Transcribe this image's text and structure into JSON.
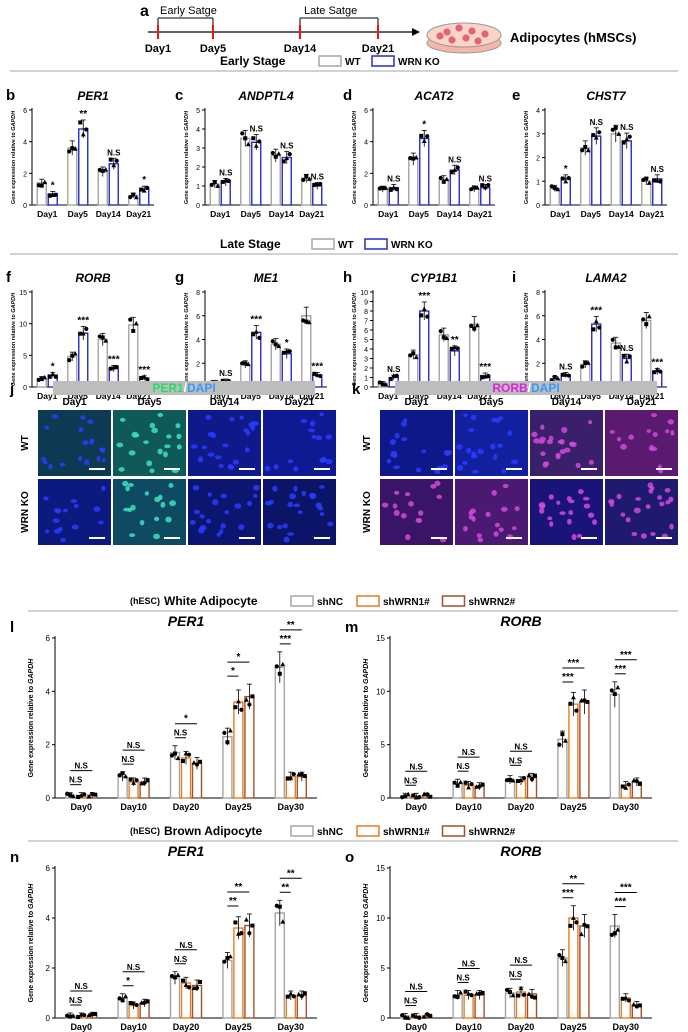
{
  "timeline": {
    "label": "a",
    "stage_labels": [
      "Early Satge",
      "Late Satge"
    ],
    "days": [
      "Day1",
      "Day5",
      "Day14",
      "Day21"
    ],
    "result": "Adipocytes (hMSCs)"
  },
  "legends": {
    "early": {
      "title": "Early Stage",
      "items": [
        "WT",
        "WRN KO"
      ]
    },
    "late": {
      "title": "Late Stage",
      "items": [
        "WT",
        "WRN KO"
      ]
    },
    "white": {
      "prefix": "(hESC)",
      "title": "White Adipocyte",
      "items": [
        "shNC",
        "shWRN1#",
        "shWRN2#"
      ]
    },
    "brown": {
      "prefix": "(hESC)",
      "title": "Brown Adipocyte",
      "items": [
        "shNC",
        "shWRN1#",
        "shWRN2#"
      ]
    }
  },
  "colors": {
    "wt_fill": "#ffffff",
    "wt_edge": "#a6a6a6",
    "ko_fill": "#ffffff",
    "ko_edge": "#2b2bc8",
    "shnc_edge": "#a6a6a6",
    "shwrn1_edge": "#e67e22",
    "shwrn2_edge": "#a0522d",
    "dot": "#000000"
  },
  "ylabel_prefix": "Gene expression relative to ",
  "ylabel_gene": "GAPDH",
  "chart_data": [
    {
      "id": "b",
      "type": "bar",
      "title": "PER1",
      "categories": [
        "Day1",
        "Day5",
        "Day14",
        "Day21"
      ],
      "ylim": [
        0,
        6
      ],
      "ticks": [
        0,
        2,
        4,
        6
      ],
      "series": [
        {
          "name": "WT",
          "values": [
            1.4,
            3.6,
            2.1,
            0.6
          ]
        },
        {
          "name": "WRN KO",
          "values": [
            0.7,
            4.8,
            2.6,
            1.0
          ]
        }
      ],
      "sig": [
        "*",
        "**",
        "N.S",
        "*"
      ]
    },
    {
      "id": "c",
      "type": "bar",
      "title": "ANDPTL4",
      "categories": [
        "Day1",
        "Day5",
        "Day14",
        "Day21"
      ],
      "ylim": [
        0,
        5
      ],
      "ticks": [
        0,
        1,
        2,
        3,
        4,
        5
      ],
      "series": [
        {
          "name": "WT",
          "values": [
            1.1,
            3.5,
            2.6,
            1.4
          ]
        },
        {
          "name": "WRN KO",
          "values": [
            1.2,
            3.3,
            2.5,
            1.0
          ]
        }
      ],
      "sig": [
        "N.S",
        "N.S",
        "N.S",
        "N.S"
      ]
    },
    {
      "id": "d",
      "type": "bar",
      "title": "ACAT2",
      "categories": [
        "Day1",
        "Day5",
        "Day14",
        "Day21"
      ],
      "ylim": [
        0,
        6
      ],
      "ticks": [
        0,
        2,
        4,
        6
      ],
      "series": [
        {
          "name": "WT",
          "values": [
            1.0,
            2.9,
            1.6,
            1.0
          ]
        },
        {
          "name": "WRN KO",
          "values": [
            1.1,
            4.2,
            2.2,
            1.1
          ]
        }
      ],
      "sig": [
        "N.S",
        "*",
        "N.S",
        "N.S"
      ]
    },
    {
      "id": "e",
      "type": "bar",
      "title": "CHST7",
      "categories": [
        "Day1",
        "Day5",
        "Day14",
        "Day21"
      ],
      "ylim": [
        0,
        4
      ],
      "ticks": [
        0,
        1,
        2,
        3,
        4
      ],
      "series": [
        {
          "name": "WT",
          "values": [
            0.7,
            2.4,
            3.0,
            1.0
          ]
        },
        {
          "name": "WRN KO",
          "values": [
            1.1,
            2.9,
            2.7,
            1.1
          ]
        }
      ],
      "sig": [
        "*",
        "N.S",
        "N.S",
        "N.S"
      ]
    },
    {
      "id": "f",
      "type": "bar",
      "title": "RORB",
      "categories": [
        "Day1",
        "Day5",
        "Day14",
        "Day21"
      ],
      "ylim": [
        0,
        15
      ],
      "ticks": [
        0,
        5,
        10,
        15
      ],
      "series": [
        {
          "name": "WT",
          "values": [
            1.3,
            4.8,
            7.5,
            9.8
          ]
        },
        {
          "name": "WRN KO",
          "values": [
            1.9,
            8.5,
            2.9,
            1.4
          ]
        }
      ],
      "sig": [
        "*",
        "***",
        "***",
        "***"
      ]
    },
    {
      "id": "g",
      "type": "bar",
      "title": "ME1",
      "categories": [
        "Day1",
        "Day5",
        "Day14",
        "Day21"
      ],
      "ylim": [
        0,
        8
      ],
      "ticks": [
        0,
        2,
        4,
        6,
        8
      ],
      "series": [
        {
          "name": "WT",
          "values": [
            0.4,
            1.9,
            3.6,
            6.0
          ]
        },
        {
          "name": "WRN KO",
          "values": [
            0.5,
            4.6,
            2.8,
            1.0
          ]
        }
      ],
      "sig": [
        "N.S",
        "***",
        "*",
        "***"
      ]
    },
    {
      "id": "h",
      "type": "bar",
      "title": "CYP1B1",
      "categories": [
        "Day1",
        "Day5",
        "Day14",
        "Day21"
      ],
      "ylim": [
        0,
        10
      ],
      "ticks": [
        0,
        1,
        2,
        3,
        4,
        5,
        6,
        7,
        8,
        9,
        10
      ],
      "series": [
        {
          "name": "WT",
          "values": [
            0.4,
            3.4,
            5.5,
            6.6
          ]
        },
        {
          "name": "WRN KO",
          "values": [
            1.0,
            8.0,
            3.8,
            1.2
          ]
        }
      ],
      "sig": [
        "N.S",
        "***",
        "**",
        "***"
      ]
    },
    {
      "id": "i",
      "type": "bar",
      "title": "LAMA2",
      "categories": [
        "Day1",
        "Day5",
        "Day14",
        "Day21"
      ],
      "ylim": [
        0,
        8
      ],
      "ticks": [
        0,
        2,
        4,
        6,
        8
      ],
      "series": [
        {
          "name": "WT",
          "values": [
            0.7,
            1.9,
            3.7,
            5.6
          ]
        },
        {
          "name": "WRN KO",
          "values": [
            1.0,
            5.3,
            2.4,
            1.3
          ]
        }
      ],
      "sig": [
        "N.S",
        "***",
        "N.S",
        "***"
      ]
    },
    {
      "id": "l",
      "type": "bar",
      "title": "PER1",
      "categories": [
        "Day0",
        "Day10",
        "Day20",
        "Day25",
        "Day30"
      ],
      "ylim": [
        0,
        6
      ],
      "ticks": [
        0,
        2,
        4,
        6
      ],
      "series": [
        {
          "name": "shNC",
          "values": [
            0.1,
            0.8,
            1.7,
            2.3,
            4.9
          ]
        },
        {
          "name": "shWRN1#",
          "values": [
            0.1,
            0.6,
            1.5,
            3.6,
            0.8
          ]
        },
        {
          "name": "shWRN2#",
          "values": [
            0.1,
            0.6,
            1.3,
            3.8,
            0.8
          ]
        }
      ],
      "sig_pairs": [
        [
          "N.S",
          "N.S"
        ],
        [
          "N.S",
          "N.S"
        ],
        [
          "N.S",
          "*"
        ],
        [
          "*",
          "*"
        ],
        [
          "***",
          "**"
        ]
      ]
    },
    {
      "id": "m",
      "type": "bar",
      "title": "RORB",
      "categories": [
        "Day0",
        "Day10",
        "Day20",
        "Day25",
        "Day30"
      ],
      "ylim": [
        0,
        15
      ],
      "ticks": [
        0,
        5,
        10,
        15
      ],
      "series": [
        {
          "name": "shNC",
          "values": [
            0.2,
            1.4,
            1.7,
            5.5,
            9.7
          ]
        },
        {
          "name": "shWRN1#",
          "values": [
            0.2,
            1.2,
            1.6,
            8.8,
            1.2
          ]
        },
        {
          "name": "shWRN2#",
          "values": [
            0.2,
            1.1,
            1.9,
            9.0,
            1.5
          ]
        }
      ],
      "sig_pairs": [
        [
          "N.S",
          "N.S"
        ],
        [
          "N.S",
          "N.S"
        ],
        [
          "N.S",
          "N.S"
        ],
        [
          "***",
          "***"
        ],
        [
          "***",
          "***"
        ]
      ]
    },
    {
      "id": "n",
      "type": "bar",
      "title": "PER1",
      "categories": [
        "Day0",
        "Day10",
        "Day20",
        "Day25",
        "Day30"
      ],
      "ylim": [
        0,
        6
      ],
      "ticks": [
        0,
        2,
        4,
        6
      ],
      "series": [
        {
          "name": "shNC",
          "values": [
            0.1,
            0.8,
            1.6,
            2.3,
            4.2
          ]
        },
        {
          "name": "shWRN1#",
          "values": [
            0.1,
            0.5,
            1.4,
            3.6,
            0.9
          ]
        },
        {
          "name": "shWRN2#",
          "values": [
            0.1,
            0.6,
            1.3,
            3.7,
            0.9
          ]
        }
      ],
      "sig_pairs": [
        [
          "N.S",
          "N.S"
        ],
        [
          "*",
          "N.S"
        ],
        [
          "N.S",
          "N.S"
        ],
        [
          "**",
          "**"
        ],
        [
          "**",
          "**"
        ]
      ]
    },
    {
      "id": "o",
      "type": "bar",
      "title": "RORB",
      "categories": [
        "Day0",
        "Day10",
        "Day20",
        "Day25",
        "Day30"
      ],
      "ylim": [
        0,
        15
      ],
      "ticks": [
        0,
        5,
        10,
        15
      ],
      "series": [
        {
          "name": "shNC",
          "values": [
            0.2,
            2.3,
            2.5,
            6.0,
            9.2
          ]
        },
        {
          "name": "shWRN1#",
          "values": [
            0.2,
            2.3,
            2.6,
            10.0,
            2.0
          ]
        },
        {
          "name": "shWRN2#",
          "values": [
            0.2,
            2.3,
            2.4,
            9.2,
            1.3
          ]
        }
      ],
      "sig_pairs": [
        [
          "N.S",
          "N.S"
        ],
        [
          "N.S",
          "N.S"
        ],
        [
          "N.S",
          "N.S"
        ],
        [
          "***",
          "**"
        ],
        [
          "***",
          "***"
        ]
      ]
    }
  ],
  "micrographs": [
    {
      "id": "j",
      "stain_a": "PER1",
      "stain_sep": "/",
      "stain_b": "DAPI",
      "stain_a_color": "#22dd66",
      "stain_b_color": "#3399ff",
      "columns": [
        "Day1",
        "Day5",
        "Day14",
        "Day21"
      ],
      "rows": [
        "WT",
        "WRN KO"
      ],
      "cells": [
        [
          "#0d3a52",
          "#0f5a58",
          "#10198a",
          "#0f1a92"
        ],
        [
          "#0c1a80",
          "#0e4a62",
          "#0c1670",
          "#0b1466"
        ]
      ]
    },
    {
      "id": "k",
      "stain_a": "RORB",
      "stain_sep": "/",
      "stain_b": "DAPI",
      "stain_a_color": "#dd22dd",
      "stain_b_color": "#3399ff",
      "columns": [
        "Day1",
        "Day5",
        "Day14",
        "Day21"
      ],
      "rows": [
        "WT",
        "WRN KO"
      ],
      "cells": [
        [
          "#0f1888",
          "#1220a0",
          "#3a1f6a",
          "#5a1a70"
        ],
        [
          "#3a1466",
          "#4a1a72",
          "#1a1478",
          "#1f1a70"
        ]
      ]
    }
  ]
}
